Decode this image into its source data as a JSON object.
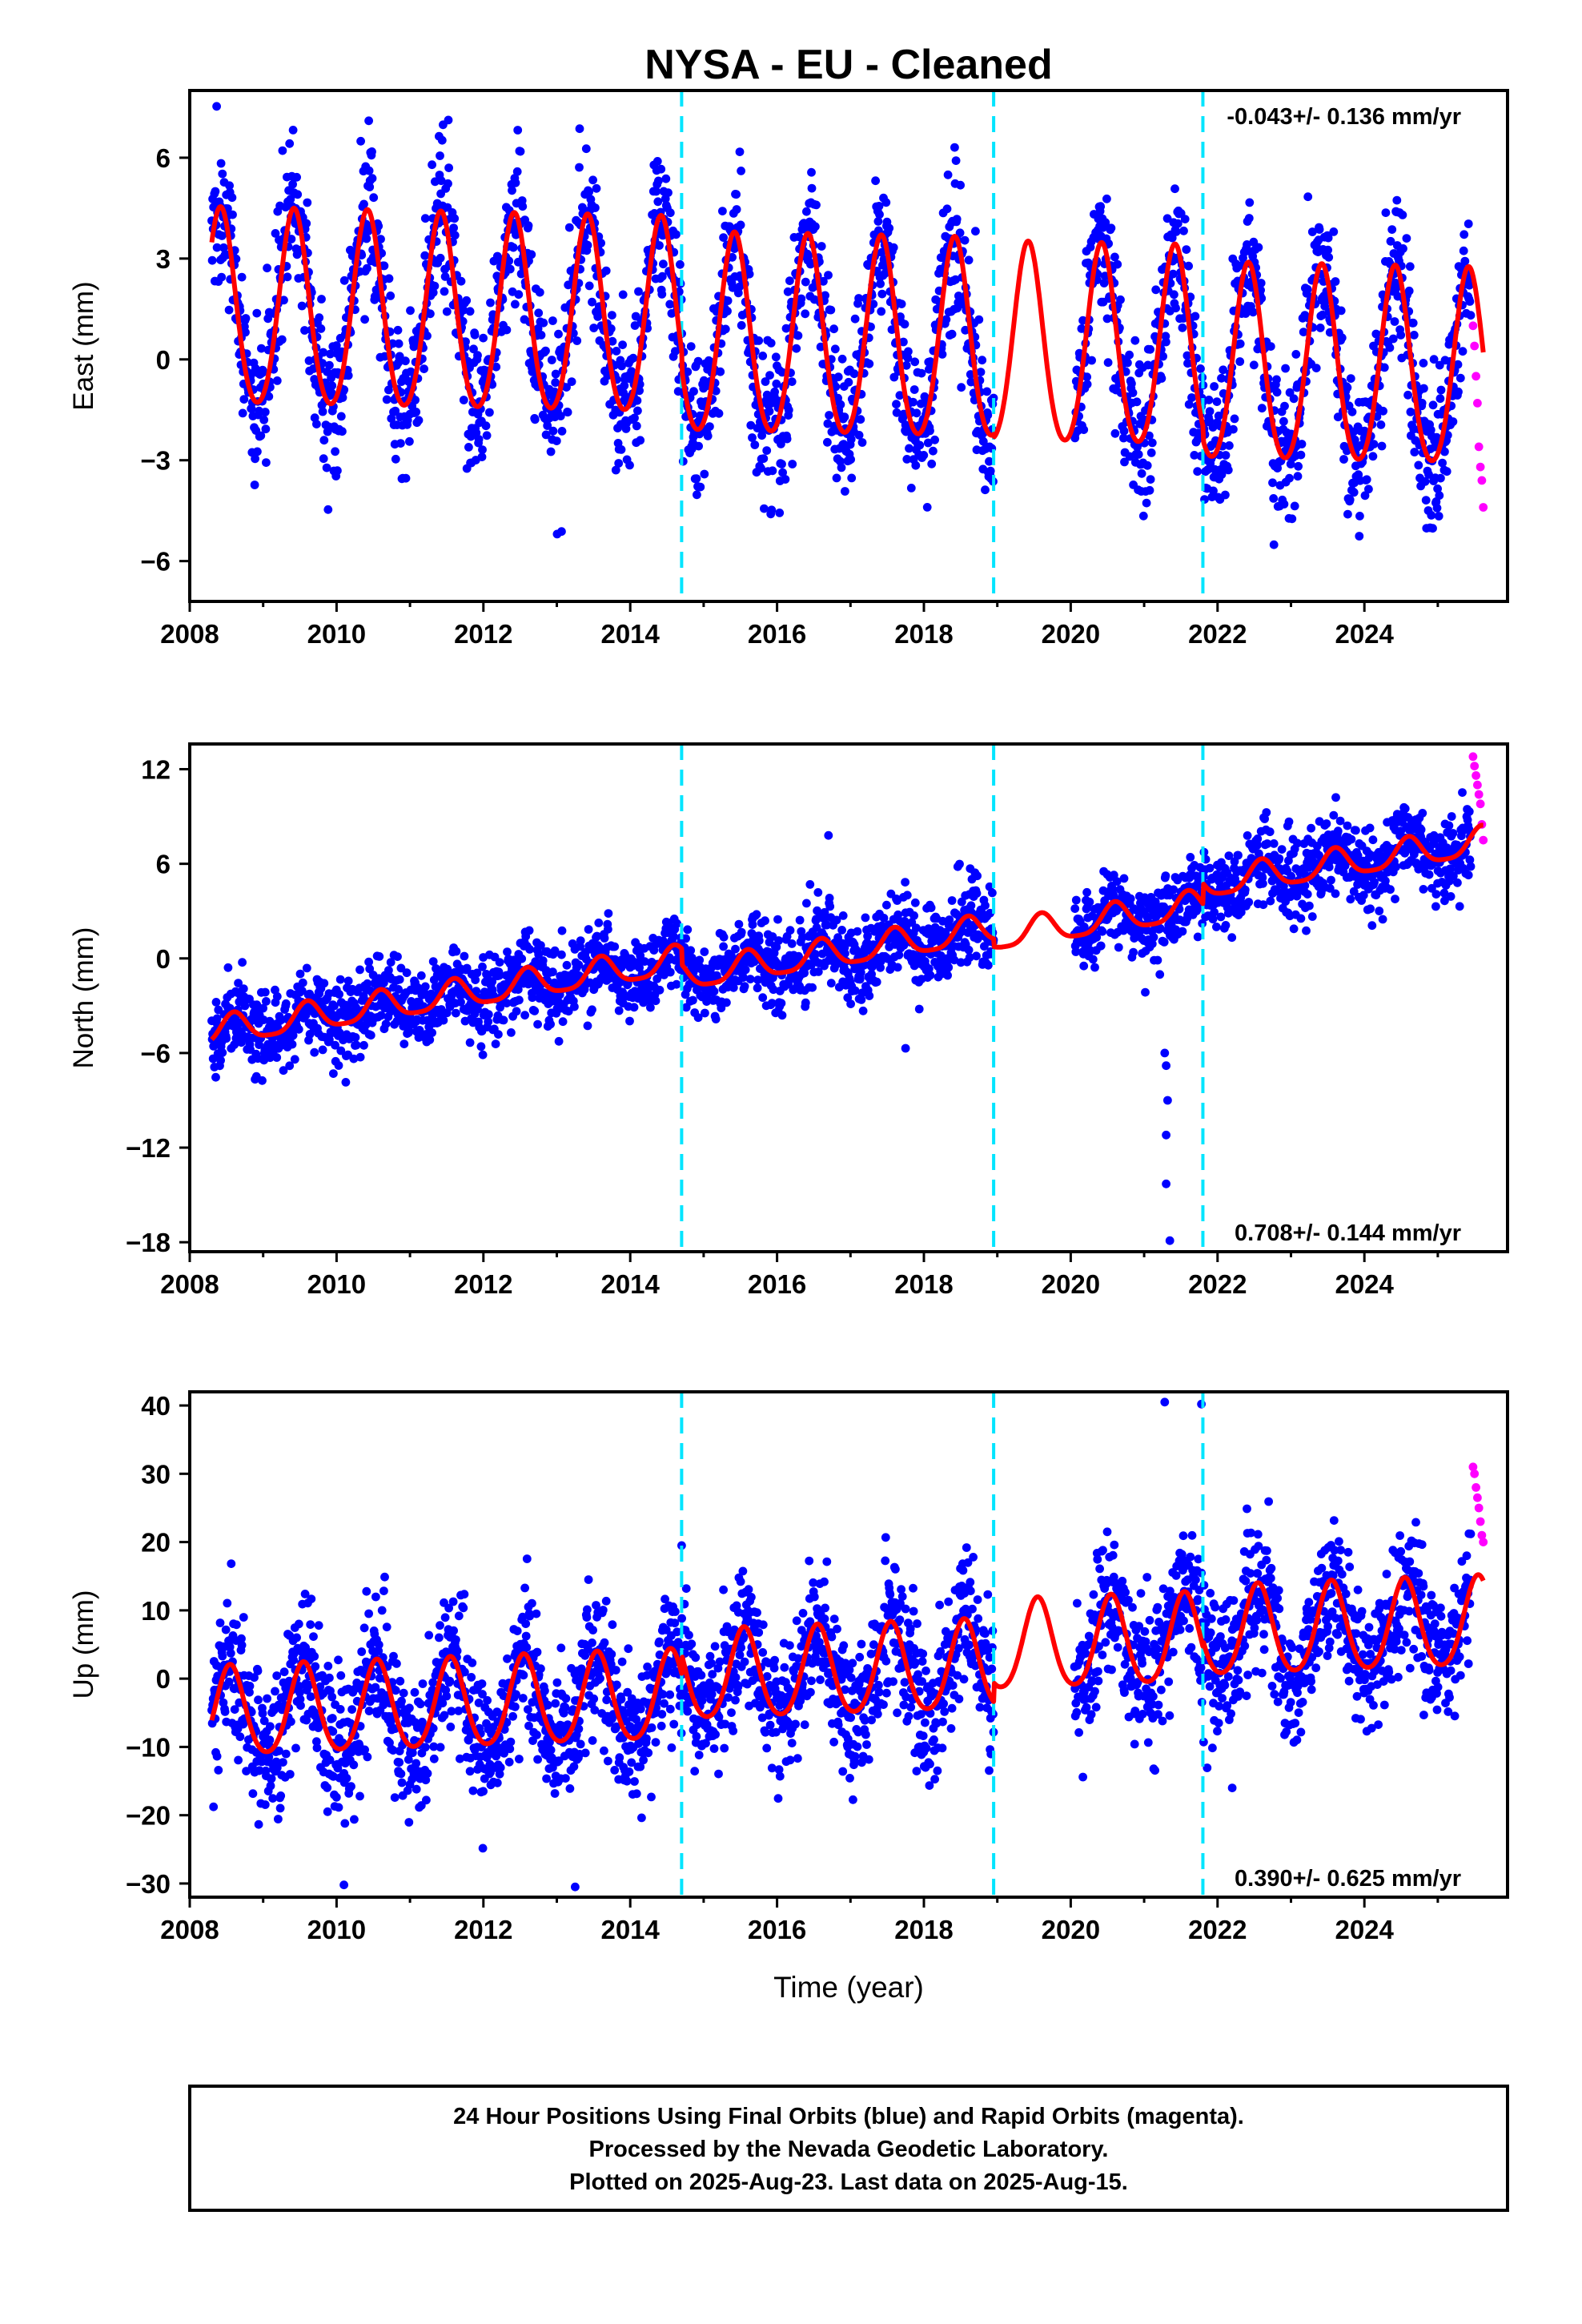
{
  "colors": {
    "final_orbits": "#0000ff",
    "rapid_orbits": "#ff00ff",
    "model": "#ff0000",
    "offsets": "#00e5ff",
    "frame": "#000000"
  },
  "chart_data": {
    "type": "scatter",
    "title": "NYSA  - EU - Cleaned",
    "xlabel": "Time (year)",
    "xlim": [
      2008.0,
      2025.95
    ],
    "xticks": [
      2008,
      2010,
      2012,
      2014,
      2016,
      2018,
      2020,
      2022,
      2024
    ],
    "offset_epochs": [
      2014.7,
      2018.95,
      2021.8
    ],
    "data_span": {
      "start": 2008.3,
      "final_end": 2025.45,
      "rapid_start": 2025.48,
      "end": 2025.62
    },
    "gaps": [
      [
        2018.95,
        2020.05
      ]
    ],
    "panels": [
      {
        "component": "East",
        "ylabel": "East (mm)",
        "ylim": [
          -7.2,
          8.0
        ],
        "yticks": [
          -6,
          -3,
          0,
          3,
          6
        ],
        "rate_text": "-0.043+/- 0.136 mm/yr",
        "rate_position": "top-right",
        "model": {
          "rate": -0.043,
          "segments": [
            {
              "start": 2008.3,
              "end": 2014.7,
              "offset": 1.35,
              "annual_amp": 2.9
            },
            {
              "start": 2014.7,
              "end": 2018.95,
              "offset": 0.85,
              "annual_amp": 2.95
            },
            {
              "start": 2018.95,
              "end": 2021.8,
              "offset": 0.75,
              "annual_amp": 2.95
            },
            {
              "start": 2021.8,
              "end": 2025.62,
              "offset": 0.3,
              "annual_amp": 2.9
            }
          ],
          "annual_peak_phase": 0.42,
          "semiannual_amp": 0.3
        },
        "scatter": {
          "noise_sd": 1.15
        },
        "rapid_values": [
          1.0,
          0.4,
          -0.5,
          -1.3,
          -2.6,
          -3.2,
          -3.6,
          -4.4
        ]
      },
      {
        "component": "North",
        "ylabel": "North (mm)",
        "ylim": [
          -18.6,
          13.6
        ],
        "yticks": [
          -18,
          -12,
          -6,
          0,
          6,
          12
        ],
        "rate_text": "0.708+/- 0.144 mm/yr",
        "rate_position": "bottom-right",
        "model": {
          "rate": 0.708,
          "segments": [
            {
              "start": 2008.3,
              "end": 2014.7,
              "offset": -4.7,
              "annual_amp": 0.9
            },
            {
              "start": 2014.7,
              "end": 2018.95,
              "offset": -5.7,
              "annual_amp": 0.9
            },
            {
              "start": 2018.95,
              "end": 2021.8,
              "offset": -6.2,
              "annual_amp": 0.9
            },
            {
              "start": 2021.8,
              "end": 2025.62,
              "offset": -4.9,
              "annual_amp": 0.9
            }
          ],
          "annual_peak_phase": 0.6,
          "semiannual_amp": 0.2
        },
        "scatter": {
          "noise_sd": 1.25
        },
        "outliers": [
          {
            "x": 2021.28,
            "y": -6.0
          },
          {
            "x": 2021.3,
            "y": -6.8
          },
          {
            "x": 2021.32,
            "y": -9.0
          },
          {
            "x": 2021.3,
            "y": -11.2
          },
          {
            "x": 2021.3,
            "y": -14.3
          },
          {
            "x": 2021.35,
            "y": -17.9
          },
          {
            "x": 2016.7,
            "y": 7.8
          },
          {
            "x": 2017.75,
            "y": -5.7
          }
        ],
        "rapid_values": [
          12.8,
          12.2,
          11.6,
          11.0,
          10.4,
          9.8,
          8.5,
          7.5
        ]
      },
      {
        "component": "Up",
        "ylabel": "Up (mm)",
        "ylim": [
          -32.0,
          42.0
        ],
        "yticks": [
          -30,
          -20,
          -10,
          0,
          10,
          20,
          30,
          40
        ],
        "rate_text": "0.390+/- 0.625 mm/yr",
        "rate_position": "bottom-right",
        "model": {
          "rate": 0.39,
          "segments": [
            {
              "start": 2008.3,
              "end": 2014.7,
              "offset": -5.3,
              "annual_amp": 6.5
            },
            {
              "start": 2014.7,
              "end": 2018.95,
              "offset": -2.5,
              "annual_amp": 6.5
            },
            {
              "start": 2018.95,
              "end": 2021.8,
              "offset": 0.3,
              "annual_amp": 6.5
            },
            {
              "start": 2021.8,
              "end": 2025.62,
              "offset": 1.2,
              "annual_amp": 6.5
            }
          ],
          "annual_peak_phase": 0.55,
          "semiannual_amp": 0.8
        },
        "scatter": {
          "noise_sd": 5.2
        },
        "outliers": [
          {
            "x": 2021.28,
            "y": 40.5
          },
          {
            "x": 2021.78,
            "y": 40.2
          },
          {
            "x": 2014.7,
            "y": 19.5
          },
          {
            "x": 2013.25,
            "y": -30.5
          },
          {
            "x": 2010.1,
            "y": -30.2
          },
          {
            "x": 2022.2,
            "y": -16.0
          }
        ],
        "rapid_values": [
          31.0,
          30.0,
          28.0,
          26.5,
          25.0,
          23.0,
          21.0,
          20.0
        ]
      }
    ]
  },
  "footer": {
    "line1": "24 Hour Positions Using Final Orbits (blue) and Rapid Orbits (magenta).",
    "line2": "Processed by the Nevada Geodetic Laboratory.",
    "line3": "Plotted on 2025-Aug-23. Last data on 2025-Aug-15."
  }
}
